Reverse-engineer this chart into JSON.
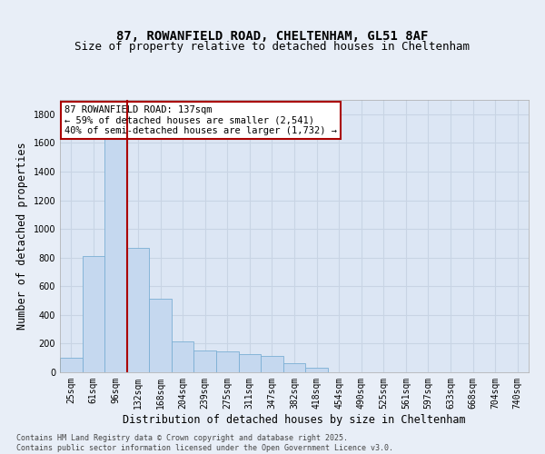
{
  "title_line1": "87, ROWANFIELD ROAD, CHELTENHAM, GL51 8AF",
  "title_line2": "Size of property relative to detached houses in Cheltenham",
  "xlabel": "Distribution of detached houses by size in Cheltenham",
  "ylabel": "Number of detached properties",
  "categories": [
    "25sqm",
    "61sqm",
    "96sqm",
    "132sqm",
    "168sqm",
    "204sqm",
    "239sqm",
    "275sqm",
    "311sqm",
    "347sqm",
    "382sqm",
    "418sqm",
    "454sqm",
    "490sqm",
    "525sqm",
    "561sqm",
    "597sqm",
    "633sqm",
    "668sqm",
    "704sqm",
    "740sqm"
  ],
  "values": [
    100,
    810,
    1700,
    870,
    510,
    215,
    155,
    145,
    125,
    115,
    65,
    30,
    0,
    0,
    0,
    0,
    0,
    0,
    0,
    0,
    0
  ],
  "bar_color": "#c5d8ef",
  "bar_edge_color": "#7bafd4",
  "vline_x_index": 2.5,
  "vline_color": "#aa0000",
  "annotation_text": "87 ROWANFIELD ROAD: 137sqm\n← 59% of detached houses are smaller (2,541)\n40% of semi-detached houses are larger (1,732) →",
  "annotation_box_facecolor": "#ffffff",
  "annotation_box_edgecolor": "#aa0000",
  "ylim": [
    0,
    1900
  ],
  "yticks": [
    0,
    200,
    400,
    600,
    800,
    1000,
    1200,
    1400,
    1600,
    1800
  ],
  "background_color": "#e8eef7",
  "plot_background_color": "#dce6f4",
  "grid_color": "#c8d4e4",
  "footnote": "Contains HM Land Registry data © Crown copyright and database right 2025.\nContains public sector information licensed under the Open Government Licence v3.0.",
  "title_fontsize": 10,
  "subtitle_fontsize": 9,
  "axis_label_fontsize": 8.5,
  "tick_fontsize": 7,
  "annotation_fontsize": 7.5,
  "footnote_fontsize": 6
}
